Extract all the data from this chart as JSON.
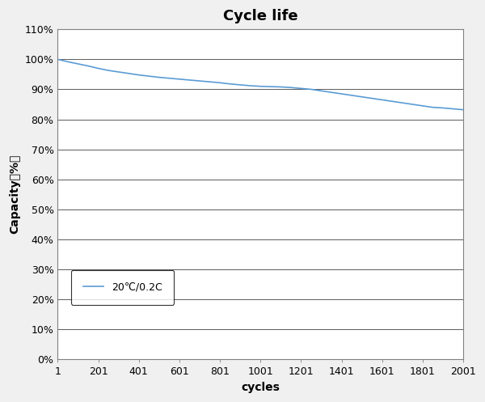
{
  "title": "Cycle life",
  "xlabel": "cycles",
  "ylabel": "Capacity（%）",
  "legend_label": "20℃/0.2C",
  "line_color": "#5B9BD5",
  "x_start": 1,
  "x_end": 2001,
  "x_ticks": [
    1,
    201,
    401,
    601,
    801,
    1001,
    1201,
    1401,
    1601,
    1801,
    2001
  ],
  "x_tick_labels": [
    "1",
    "201",
    "401",
    "601",
    "801",
    "1001",
    "1201",
    "1401",
    "1601",
    "1801",
    "2001"
  ],
  "y_min": 0,
  "y_max": 110,
  "y_ticks": [
    0,
    10,
    20,
    30,
    40,
    50,
    60,
    70,
    80,
    90,
    100,
    110
  ],
  "y_tick_labels": [
    "0%",
    "10%",
    "20%",
    "30%",
    "40%",
    "50%",
    "60%",
    "70%",
    "80%",
    "90%",
    "100%",
    "110%"
  ],
  "curve_x": [
    1,
    50,
    100,
    150,
    200,
    250,
    300,
    350,
    400,
    450,
    500,
    550,
    600,
    650,
    700,
    750,
    800,
    850,
    900,
    950,
    1000,
    1050,
    1100,
    1150,
    1200,
    1250,
    1300,
    1350,
    1400,
    1450,
    1500,
    1550,
    1600,
    1650,
    1700,
    1750,
    1800,
    1850,
    1900,
    1950,
    2001
  ],
  "curve_y": [
    100,
    99.2,
    98.5,
    97.8,
    97.0,
    96.3,
    95.8,
    95.3,
    94.8,
    94.4,
    94.0,
    93.7,
    93.4,
    93.1,
    92.8,
    92.5,
    92.2,
    91.8,
    91.5,
    91.2,
    91.0,
    90.9,
    90.8,
    90.6,
    90.3,
    90.0,
    89.5,
    89.0,
    88.5,
    88.0,
    87.5,
    87.0,
    86.5,
    86.0,
    85.5,
    85.0,
    84.5,
    84.0,
    83.8,
    83.5,
    83.2
  ],
  "background_color": "#f0f0f0",
  "plot_bg_color": "#ffffff",
  "grid_color": "#404040",
  "border_color": "#808080",
  "title_fontsize": 13,
  "label_fontsize": 10,
  "tick_fontsize": 9,
  "legend_fontsize": 9,
  "fig_width": 6.0,
  "fig_height": 4.97,
  "dpi": 100
}
